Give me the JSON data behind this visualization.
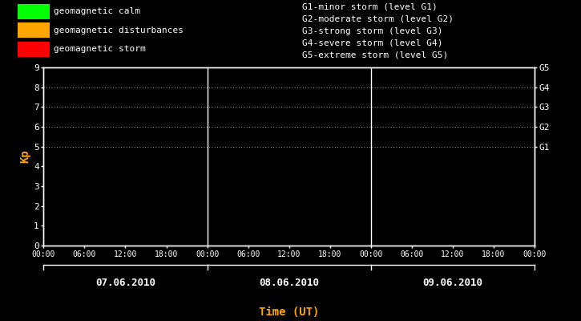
{
  "bg_color": "#000000",
  "plot_bg_color": "#000000",
  "text_color": "#ffffff",
  "orange_color": "#ffa500",
  "axis_color": "#ffffff",
  "grid_color": "#ffffff",
  "legend_items": [
    {
      "label": "geomagnetic calm",
      "color": "#00ff00"
    },
    {
      "label": "geomagnetic disturbances",
      "color": "#ffa500"
    },
    {
      "label": "geomagnetic storm",
      "color": "#ff0000"
    }
  ],
  "right_legend_items": [
    "G1-minor storm (level G1)",
    "G2-moderate storm (level G2)",
    "G3-strong storm (level G3)",
    "G4-severe storm (level G4)",
    "G5-extreme storm (level G5)"
  ],
  "right_labels": [
    "G5",
    "G4",
    "G3",
    "G2",
    "G1"
  ],
  "right_label_yvals": [
    9,
    8,
    7,
    6,
    5
  ],
  "ylabel": "Kp",
  "xlabel": "Time (UT)",
  "ylim": [
    0,
    9
  ],
  "yticks": [
    0,
    1,
    2,
    3,
    4,
    5,
    6,
    7,
    8,
    9
  ],
  "days": [
    "07.06.2010",
    "08.06.2010",
    "09.06.2010"
  ],
  "day_separators": [
    24,
    48
  ],
  "xtick_labels": [
    "00:00",
    "06:00",
    "12:00",
    "18:00",
    "00:00",
    "06:00",
    "12:00",
    "18:00",
    "00:00",
    "06:00",
    "12:00",
    "18:00",
    "00:00"
  ],
  "xtick_positions": [
    0,
    6,
    12,
    18,
    24,
    30,
    36,
    42,
    48,
    54,
    60,
    66,
    72
  ],
  "xlim": [
    0,
    72
  ],
  "dotted_yvals": [
    5,
    6,
    7,
    8,
    9
  ],
  "font_family": "monospace",
  "font_size": 8,
  "ylabel_fontsize": 10
}
